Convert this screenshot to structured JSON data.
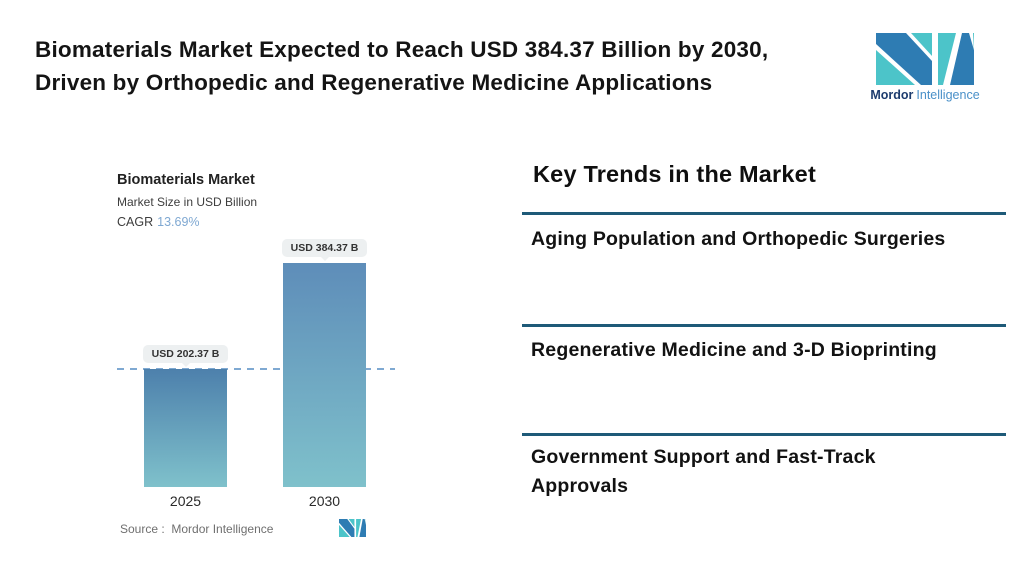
{
  "header": {
    "title": "Biomaterials Market Expected to Reach USD 384.37 Billion by 2030,\nDriven by Orthopedic and Regenerative Medicine Applications"
  },
  "brand": {
    "name_bold": "Mordor",
    "name_light": "Intelligence"
  },
  "chart_data": {
    "type": "bar",
    "title": "Biomaterials Market",
    "subtitle": "Market Size in USD Billion",
    "cagr_label": "CAGR",
    "cagr_value": "13.69%",
    "categories": [
      "2025",
      "2030"
    ],
    "values": [
      202.37,
      384.37
    ],
    "bar_labels": [
      "USD 202.37 B",
      "USD 384.37 B"
    ],
    "unit": "USD Billion",
    "ylim": [
      0,
      384.37
    ],
    "reference_line": 202.37,
    "grid": false,
    "legend": "none",
    "source_label": "Source :  Mordor Intelligence"
  },
  "trends": {
    "heading": "Key Trends in the Market",
    "items": [
      "Aging Population and Orthopedic Surgeries",
      "Regenerative Medicine and 3-D Bioprinting",
      "Government Support and Fast-Track\nApprovals"
    ]
  },
  "colors": {
    "bar_top_2025": "#4d80ac",
    "bar_top_2030": "#5e8db9",
    "bar_bottom": "#7fc1cb",
    "reference_line": "#7fa9d2",
    "divider": "#1e5a78",
    "cagr_value": "#7fa8d2",
    "logo_teal": "#4cc4c9",
    "logo_blue": "#2e7cb3"
  }
}
